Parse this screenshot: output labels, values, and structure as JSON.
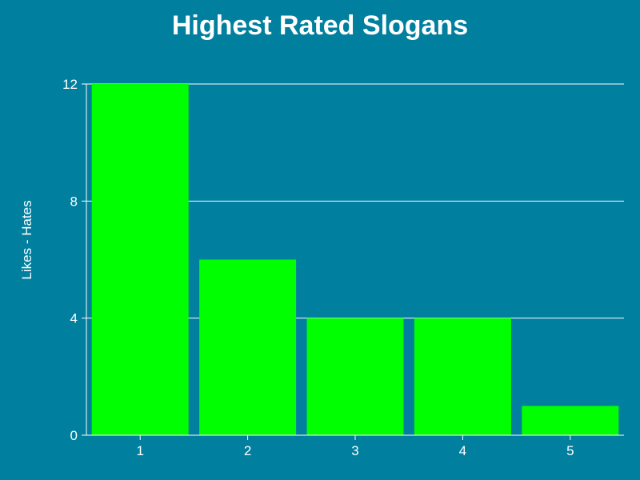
{
  "chart_data": {
    "type": "bar",
    "title": "Highest Rated Slogans",
    "xlabel": "",
    "ylabel": "Likes - Hates",
    "categories": [
      "1",
      "2",
      "3",
      "4",
      "5"
    ],
    "values": [
      12,
      6,
      4,
      4,
      1
    ],
    "ylim": [
      0,
      12
    ],
    "yticks": [
      0,
      4,
      8,
      12
    ],
    "grid": true,
    "colors": {
      "background": "#007f9f",
      "bar": "#00ff00",
      "text": "#ffffff",
      "grid": "#ffffff"
    }
  }
}
